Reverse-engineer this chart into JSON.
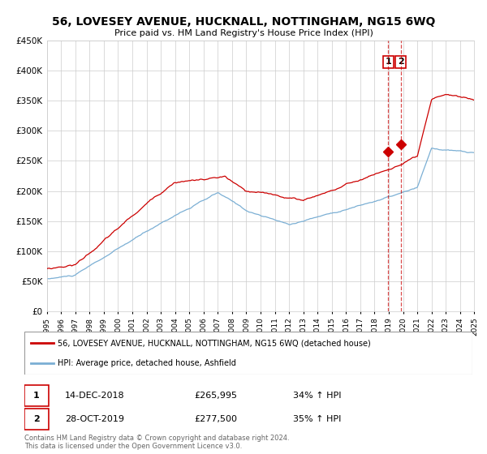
{
  "title": "56, LOVESEY AVENUE, HUCKNALL, NOTTINGHAM, NG15 6WQ",
  "subtitle": "Price paid vs. HM Land Registry's House Price Index (HPI)",
  "legend_label_red": "56, LOVESEY AVENUE, HUCKNALL, NOTTINGHAM, NG15 6WQ (detached house)",
  "legend_label_blue": "HPI: Average price, detached house, Ashfield",
  "annotation1_label": "1",
  "annotation1_date": "14-DEC-2018",
  "annotation1_price": "£265,995",
  "annotation1_hpi": "34% ↑ HPI",
  "annotation2_label": "2",
  "annotation2_date": "28-OCT-2019",
  "annotation2_price": "£277,500",
  "annotation2_hpi": "35% ↑ HPI",
  "footer": "Contains HM Land Registry data © Crown copyright and database right 2024.\nThis data is licensed under the Open Government Licence v3.0.",
  "red_color": "#cc0000",
  "blue_color": "#7bafd4",
  "point1_x": 2018.95,
  "point1_y": 265995,
  "point2_x": 2019.83,
  "point2_y": 277500,
  "xmin": 1995,
  "xmax": 2025,
  "ymin": 0,
  "ymax": 450000,
  "yticks": [
    0,
    50000,
    100000,
    150000,
    200000,
    250000,
    300000,
    350000,
    400000,
    450000
  ]
}
